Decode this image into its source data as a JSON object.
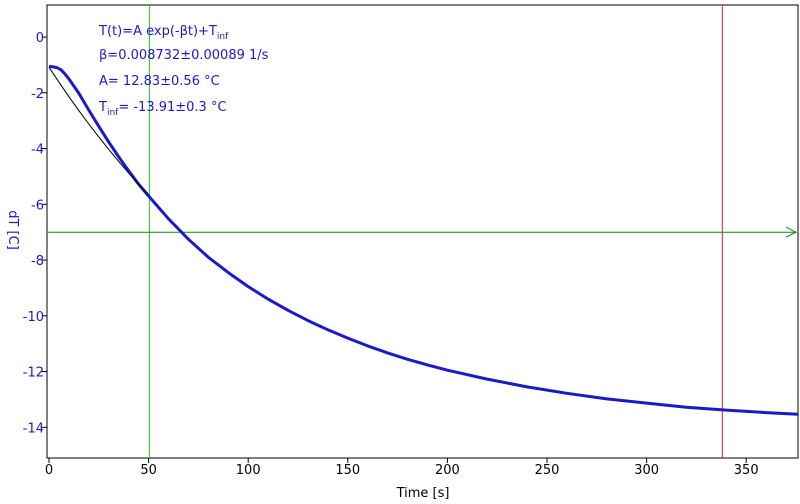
{
  "chart_data": {
    "type": "line",
    "xlabel": "Time [s]",
    "ylabel": "dT [C]",
    "xlim": [
      -1,
      376
    ],
    "ylim": [
      -15.1,
      1.15
    ],
    "x_ticks": [
      0,
      50,
      100,
      150,
      200,
      250,
      300,
      350
    ],
    "y_ticks": [
      0,
      -2,
      -4,
      -6,
      -8,
      -10,
      -12,
      -14
    ],
    "grid": false,
    "colors": {
      "data": "#1a1acc",
      "fit": "#000000",
      "axis_text": "#1a1acc",
      "cursor_v1": "#22cc22",
      "cursor_v2": "#dd2222",
      "cursor_h": "#118811"
    },
    "series": [
      {
        "role": "measured",
        "x": [
          0,
          2,
          4,
          6,
          8,
          10,
          15,
          20,
          25,
          30,
          35,
          40,
          45,
          50,
          60,
          70,
          80,
          90,
          100,
          110,
          120,
          130,
          140,
          150,
          160,
          170,
          180,
          190,
          200,
          220,
          240,
          260,
          280,
          300,
          320,
          340,
          360,
          376
        ],
        "y": [
          -1.05,
          -1.07,
          -1.1,
          -1.17,
          -1.32,
          -1.5,
          -2.02,
          -2.62,
          -3.2,
          -3.77,
          -4.3,
          -4.8,
          -5.28,
          -5.7,
          -6.52,
          -7.25,
          -7.9,
          -8.45,
          -8.95,
          -9.4,
          -9.8,
          -10.17,
          -10.5,
          -10.8,
          -11.08,
          -11.33,
          -11.56,
          -11.76,
          -11.95,
          -12.27,
          -12.55,
          -12.78,
          -12.98,
          -13.13,
          -13.28,
          -13.38,
          -13.47,
          -13.53
        ]
      },
      {
        "role": "fit",
        "x": [
          0,
          5,
          10,
          15,
          20,
          25,
          30,
          35,
          40,
          45,
          50
        ],
        "y": [
          -1.08,
          -1.62,
          -2.14,
          -2.64,
          -3.12,
          -3.58,
          -4.03,
          -4.46,
          -4.88,
          -5.28,
          -5.66
        ]
      }
    ],
    "cursors": {
      "v1_x": 50.5,
      "v2_x": 338,
      "h_y": -7.0
    },
    "annotations": {
      "formula_main": "T(t)=A exp(-βt)+T",
      "formula_sub": "inf",
      "beta": "β=0.008732±0.00089 1/s",
      "amp": "A= 12.83±0.56 °C",
      "tinf_main": "T",
      "tinf_sub": "inf",
      "tinf_value": "= -13.91±0.3 °C"
    }
  }
}
